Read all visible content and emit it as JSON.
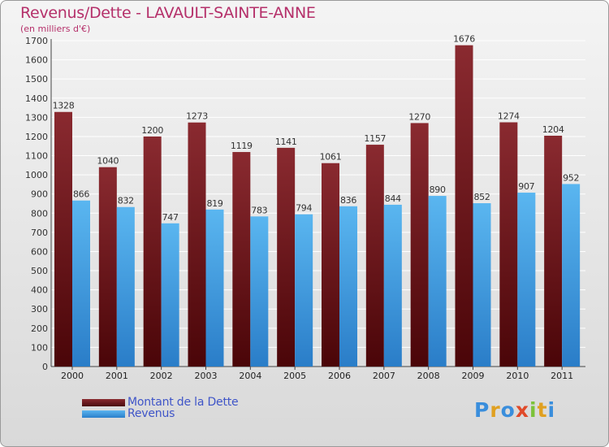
{
  "chart_data": {
    "type": "bar",
    "title": "Revenus/Dette - LAVAULT-SAINTE-ANNE",
    "subtitle": "(en milliers d'€)",
    "categories": [
      "2000",
      "2001",
      "2002",
      "2003",
      "2004",
      "2005",
      "2006",
      "2007",
      "2008",
      "2009",
      "2010",
      "2011"
    ],
    "series": [
      {
        "name": "Montant de la Dette",
        "color": "#7a1f24",
        "values": [
          1328,
          1040,
          1200,
          1273,
          1119,
          1141,
          1061,
          1157,
          1270,
          1676,
          1274,
          1204
        ]
      },
      {
        "name": "Revenus",
        "color": "#3f9fe3",
        "values": [
          866,
          832,
          747,
          819,
          783,
          794,
          836,
          844,
          890,
          852,
          907,
          952
        ]
      }
    ],
    "ylim": [
      0,
      1700
    ],
    "yticks": [
      0,
      100,
      200,
      300,
      400,
      500,
      600,
      700,
      800,
      900,
      1000,
      1100,
      1200,
      1300,
      1400,
      1500,
      1600,
      1700
    ],
    "grid": true,
    "legend_position": "bottom-left"
  },
  "legend": {
    "debt_label": "Montant de la Dette",
    "revenue_label": "Revenus"
  },
  "logo": {
    "letters": [
      "P",
      "r",
      "o",
      "x",
      "i",
      "t",
      "i"
    ],
    "colors": [
      "#3a8edc",
      "#e0a020",
      "#3a8edc",
      "#e04a2a",
      "#7cc23a",
      "#e0a020",
      "#3a8edc"
    ]
  }
}
